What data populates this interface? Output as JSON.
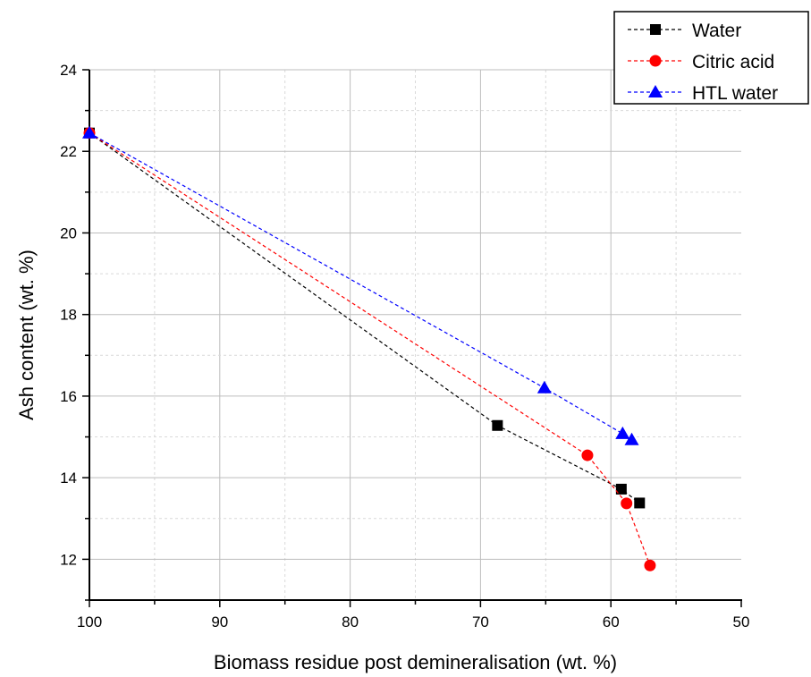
{
  "chart_data": {
    "type": "line",
    "title": "",
    "xlabel": "Biomass residue post demineralisation (wt. %)",
    "ylabel": "Ash content (wt. %)",
    "xlim": [
      100,
      50
    ],
    "x_reversed": true,
    "ylim": [
      11,
      24
    ],
    "x_ticks": [
      100,
      90,
      80,
      70,
      60,
      50
    ],
    "x_tick_labels": [
      "100",
      "90",
      "80",
      "70",
      "60",
      "50"
    ],
    "y_ticks": [
      12,
      14,
      16,
      18,
      20,
      22,
      24
    ],
    "y_tick_labels": [
      "12",
      "14",
      "16",
      "18",
      "20",
      "22",
      "24"
    ],
    "grid": true,
    "legend": "top-right",
    "series": [
      {
        "name": "Water",
        "color": "#000000",
        "marker": "square",
        "points": [
          {
            "x": 100,
            "y": 22.45
          },
          {
            "x": 68.7,
            "y": 15.28
          },
          {
            "x": 59.2,
            "y": 13.72
          },
          {
            "x": 57.8,
            "y": 13.38
          }
        ]
      },
      {
        "name": "Citric acid",
        "color": "#ff0000",
        "marker": "circle",
        "points": [
          {
            "x": 100,
            "y": 22.45
          },
          {
            "x": 61.8,
            "y": 14.55
          },
          {
            "x": 58.8,
            "y": 13.37
          },
          {
            "x": 57.0,
            "y": 11.85
          }
        ]
      },
      {
        "name": "HTL water",
        "color": "#0000ff",
        "marker": "triangle",
        "points": [
          {
            "x": 100,
            "y": 22.45
          },
          {
            "x": 65.1,
            "y": 16.2
          },
          {
            "x": 59.1,
            "y": 15.08
          },
          {
            "x": 58.4,
            "y": 14.93
          }
        ]
      }
    ]
  }
}
